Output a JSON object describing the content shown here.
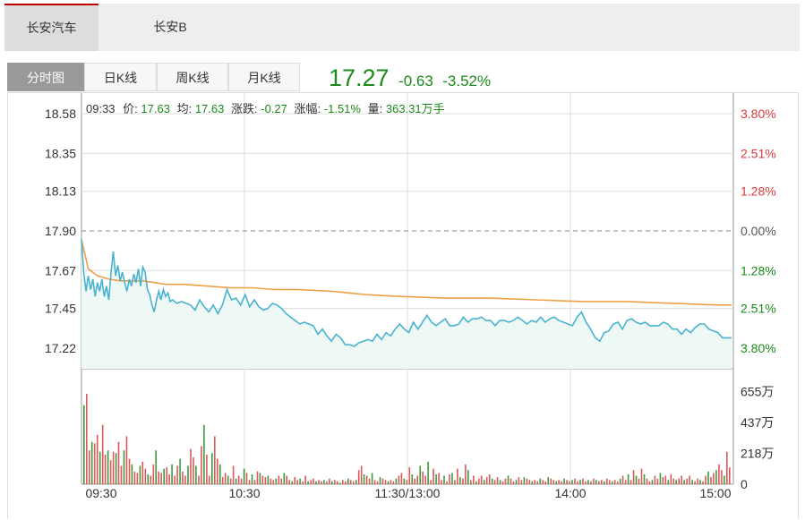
{
  "stock_tabs": [
    {
      "label": "长安汽车",
      "active": true
    },
    {
      "label": "长安B",
      "active": false
    }
  ],
  "period_tabs": [
    {
      "label": "分时图",
      "active": true
    },
    {
      "label": "日K线",
      "active": false
    },
    {
      "label": "周K线",
      "active": false
    },
    {
      "label": "月K线",
      "active": false
    }
  ],
  "quote": {
    "price": "17.27",
    "change": "-0.63",
    "change_pct": "-3.52%"
  },
  "info_bar": {
    "time": "09:33",
    "price_label": "价:",
    "price": "17.63",
    "avg_label": "均:",
    "avg": "17.63",
    "change_label": "涨跌:",
    "change": "-0.27",
    "pct_label": "涨幅:",
    "pct": "-1.51%",
    "volume_label": "量:",
    "volume": "363.31万手"
  },
  "colors": {
    "up": "#d83b3b",
    "down": "#1b8a1b",
    "price_line": "#49b3d1",
    "avg_line": "#f0a044",
    "area_fill": "#eef8f4",
    "grid": "#dddddd"
  },
  "chart_data": {
    "type": "line",
    "prev_close": 17.9,
    "price_ylim": [
      17.1,
      18.7
    ],
    "y_ticks": [
      "18.58",
      "18.35",
      "18.13",
      "17.90",
      "17.67",
      "17.45",
      "17.22"
    ],
    "pct_ticks": [
      {
        "label": "3.80%",
        "dir": "up"
      },
      {
        "label": "2.51%",
        "dir": "up"
      },
      {
        "label": "1.28%",
        "dir": "up"
      },
      {
        "label": "0.00%",
        "dir": "flat"
      },
      {
        "label": "1.28%",
        "dir": "down"
      },
      {
        "label": "2.51%",
        "dir": "down"
      },
      {
        "label": "3.80%",
        "dir": "down"
      }
    ],
    "x_ticks": [
      "09:30",
      "10:30",
      "11:30/13:00",
      "14:00",
      "15:00"
    ],
    "minutes_total": 240,
    "series": [
      {
        "name": "价",
        "points": [
          [
            0,
            17.85
          ],
          [
            2,
            17.66
          ],
          [
            4,
            17.55
          ],
          [
            6,
            17.64
          ],
          [
            8,
            17.56
          ],
          [
            10,
            17.62
          ],
          [
            12,
            17.52
          ],
          [
            14,
            17.6
          ],
          [
            16,
            17.55
          ],
          [
            18,
            17.62
          ],
          [
            20,
            17.52
          ],
          [
            22,
            17.58
          ],
          [
            24,
            17.5
          ],
          [
            26,
            17.66
          ],
          [
            28,
            17.78
          ],
          [
            30,
            17.64
          ],
          [
            32,
            17.7
          ],
          [
            34,
            17.61
          ],
          [
            36,
            17.66
          ],
          [
            38,
            17.6
          ],
          [
            40,
            17.55
          ],
          [
            42,
            17.62
          ],
          [
            44,
            17.58
          ],
          [
            46,
            17.65
          ],
          [
            48,
            17.6
          ],
          [
            50,
            17.68
          ],
          [
            52,
            17.58
          ],
          [
            54,
            17.69
          ],
          [
            56,
            17.66
          ],
          [
            58,
            17.56
          ],
          [
            60,
            17.53
          ],
          [
            62,
            17.47
          ],
          [
            64,
            17.43
          ],
          [
            66,
            17.5
          ],
          [
            68,
            17.55
          ],
          [
            70,
            17.5
          ],
          [
            72,
            17.56
          ],
          [
            74,
            17.52
          ],
          [
            76,
            17.54
          ],
          [
            78,
            17.49
          ],
          [
            80,
            17.5
          ],
          [
            84,
            17.48
          ],
          [
            88,
            17.49
          ],
          [
            92,
            17.48
          ],
          [
            96,
            17.47
          ],
          [
            100,
            17.44
          ],
          [
            104,
            17.5
          ],
          [
            108,
            17.46
          ],
          [
            112,
            17.43
          ],
          [
            116,
            17.47
          ],
          [
            120,
            17.42
          ],
          [
            124,
            17.47
          ],
          [
            128,
            17.56
          ],
          [
            132,
            17.5
          ],
          [
            136,
            17.51
          ],
          [
            140,
            17.47
          ],
          [
            144,
            17.53
          ],
          [
            148,
            17.46
          ],
          [
            152,
            17.5
          ],
          [
            156,
            17.46
          ],
          [
            160,
            17.44
          ],
          [
            164,
            17.45
          ],
          [
            168,
            17.48
          ],
          [
            172,
            17.47
          ],
          [
            176,
            17.45
          ],
          [
            180,
            17.42
          ],
          [
            184,
            17.4
          ],
          [
            188,
            17.38
          ],
          [
            192,
            17.36
          ],
          [
            196,
            17.37
          ],
          [
            200,
            17.36
          ],
          [
            204,
            17.35
          ],
          [
            208,
            17.3
          ],
          [
            212,
            17.33
          ],
          [
            216,
            17.29
          ],
          [
            220,
            17.26
          ],
          [
            224,
            17.3
          ],
          [
            228,
            17.28
          ],
          [
            232,
            17.24
          ],
          [
            236,
            17.24
          ],
          [
            240,
            17.23
          ],
          [
            244,
            17.25
          ],
          [
            248,
            17.26
          ],
          [
            252,
            17.27
          ],
          [
            256,
            17.26
          ],
          [
            260,
            17.3
          ],
          [
            264,
            17.27
          ],
          [
            268,
            17.31
          ],
          [
            272,
            17.29
          ],
          [
            276,
            17.33
          ],
          [
            280,
            17.36
          ],
          [
            284,
            17.33
          ],
          [
            288,
            17.31
          ],
          [
            292,
            17.37
          ],
          [
            296,
            17.33
          ],
          [
            300,
            17.37
          ],
          [
            304,
            17.41
          ],
          [
            308,
            17.37
          ],
          [
            312,
            17.35
          ],
          [
            316,
            17.37
          ],
          [
            320,
            17.39
          ],
          [
            324,
            17.35
          ],
          [
            328,
            17.35
          ],
          [
            332,
            17.36
          ],
          [
            336,
            17.4
          ],
          [
            340,
            17.37
          ],
          [
            344,
            17.39
          ],
          [
            348,
            17.39
          ],
          [
            352,
            17.4
          ],
          [
            356,
            17.38
          ],
          [
            360,
            17.38
          ],
          [
            364,
            17.35
          ],
          [
            368,
            17.38
          ],
          [
            372,
            17.38
          ],
          [
            376,
            17.37
          ],
          [
            380,
            17.38
          ],
          [
            384,
            17.4
          ],
          [
            388,
            17.38
          ],
          [
            392,
            17.36
          ],
          [
            396,
            17.38
          ],
          [
            400,
            17.37
          ],
          [
            404,
            17.4
          ],
          [
            408,
            17.37
          ],
          [
            412,
            17.39
          ],
          [
            416,
            17.4
          ],
          [
            420,
            17.38
          ],
          [
            424,
            17.37
          ],
          [
            428,
            17.36
          ],
          [
            432,
            17.35
          ],
          [
            436,
            17.4
          ],
          [
            440,
            17.43
          ],
          [
            444,
            17.37
          ],
          [
            448,
            17.33
          ],
          [
            452,
            17.28
          ],
          [
            456,
            17.26
          ],
          [
            460,
            17.31
          ],
          [
            464,
            17.32
          ],
          [
            468,
            17.36
          ],
          [
            472,
            17.37
          ],
          [
            476,
            17.33
          ],
          [
            480,
            17.38
          ],
          [
            484,
            17.39
          ],
          [
            488,
            17.37
          ],
          [
            492,
            17.36
          ],
          [
            496,
            17.37
          ],
          [
            500,
            17.35
          ],
          [
            504,
            17.35
          ],
          [
            508,
            17.35
          ],
          [
            512,
            17.37
          ],
          [
            516,
            17.36
          ],
          [
            520,
            17.33
          ],
          [
            524,
            17.33
          ],
          [
            528,
            17.3
          ],
          [
            532,
            17.33
          ],
          [
            536,
            17.31
          ],
          [
            540,
            17.34
          ],
          [
            544,
            17.36
          ],
          [
            548,
            17.36
          ],
          [
            552,
            17.33
          ],
          [
            556,
            17.32
          ],
          [
            560,
            17.31
          ],
          [
            564,
            17.28
          ],
          [
            568,
            17.28
          ],
          [
            572,
            17.28
          ]
        ]
      },
      {
        "name": "均",
        "points": [
          [
            0,
            17.85
          ],
          [
            6,
            17.68
          ],
          [
            14,
            17.64
          ],
          [
            24,
            17.62
          ],
          [
            34,
            17.61
          ],
          [
            44,
            17.61
          ],
          [
            54,
            17.61
          ],
          [
            64,
            17.6
          ],
          [
            74,
            17.59
          ],
          [
            90,
            17.59
          ],
          [
            110,
            17.58
          ],
          [
            130,
            17.57
          ],
          [
            150,
            17.57
          ],
          [
            170,
            17.56
          ],
          [
            190,
            17.56
          ],
          [
            220,
            17.55
          ],
          [
            250,
            17.53
          ],
          [
            280,
            17.52
          ],
          [
            320,
            17.51
          ],
          [
            360,
            17.51
          ],
          [
            400,
            17.5
          ],
          [
            440,
            17.49
          ],
          [
            480,
            17.49
          ],
          [
            520,
            17.48
          ],
          [
            560,
            17.47
          ],
          [
            572,
            17.47
          ]
        ]
      }
    ],
    "volume_ylim": [
      0,
      780
    ],
    "volume_ticks": [
      "655万",
      "437万",
      "218万",
      "0"
    ],
    "volume_wan": [
      560,
      640,
      240,
      300,
      290,
      350,
      230,
      420,
      210,
      240,
      170,
      230,
      220,
      300,
      130,
      240,
      340,
      180,
      140,
      90,
      80,
      130,
      160,
      110,
      70,
      60,
      140,
      240,
      90,
      80,
      110,
      120,
      70,
      140,
      60,
      130,
      180,
      90,
      60,
      130,
      250,
      190,
      130,
      60,
      270,
      420,
      210,
      60,
      220,
      340,
      180,
      140,
      50,
      80,
      60,
      40,
      130,
      40,
      60,
      40,
      110,
      80,
      30,
      70,
      30,
      90,
      80,
      60,
      50,
      60,
      40,
      30,
      40,
      60,
      40,
      80,
      60,
      30,
      20,
      50,
      30,
      40,
      20,
      60,
      20,
      30,
      40,
      20,
      30,
      20,
      30,
      20,
      40,
      20,
      30,
      20,
      10,
      30,
      20,
      40,
      30,
      20,
      30,
      100,
      130,
      70,
      60,
      40,
      80,
      30,
      20,
      50,
      40,
      30,
      20,
      30,
      20,
      40,
      60,
      80,
      40,
      30,
      120,
      70,
      40,
      60,
      130,
      90,
      60,
      160,
      30,
      110,
      70,
      80,
      30,
      60,
      20,
      70,
      80,
      30,
      110,
      50,
      40,
      140,
      100,
      30,
      60,
      20,
      40,
      60,
      30,
      50,
      70,
      40,
      30,
      50,
      30,
      20,
      40,
      60,
      40,
      20,
      30,
      50,
      30,
      50,
      40,
      30,
      20,
      30,
      20,
      40,
      30,
      20,
      50,
      40,
      30,
      20,
      30,
      20,
      40,
      30,
      20,
      30,
      40,
      20,
      30,
      40,
      20,
      30,
      20,
      40,
      30,
      20,
      30,
      20,
      40,
      30,
      20,
      30,
      20,
      40,
      60,
      30,
      70,
      30,
      100,
      60,
      40,
      110,
      70,
      40,
      20,
      30,
      60,
      40,
      80,
      50,
      60,
      30,
      70,
      40,
      30,
      40,
      60,
      30,
      40,
      60,
      30,
      20,
      40,
      30,
      20,
      60,
      90,
      50,
      80,
      100,
      140,
      100,
      60,
      230,
      120
    ]
  }
}
